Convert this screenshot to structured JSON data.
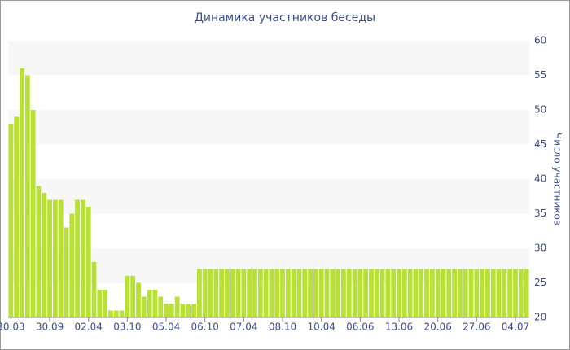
{
  "chart_data": {
    "type": "bar",
    "title": "Динамика участников беседы",
    "y_label": "Число участников",
    "categories": [
      "30.03",
      null,
      null,
      null,
      null,
      null,
      null,
      "30.09",
      null,
      null,
      null,
      null,
      null,
      null,
      "02.04",
      null,
      null,
      null,
      null,
      null,
      null,
      "03.10",
      null,
      null,
      null,
      null,
      null,
      null,
      "05.04",
      null,
      null,
      null,
      null,
      null,
      null,
      "06.10",
      null,
      null,
      null,
      null,
      null,
      null,
      "07.04",
      null,
      null,
      null,
      null,
      null,
      null,
      "08.10",
      null,
      null,
      null,
      null,
      null,
      null,
      "10.04",
      null,
      null,
      null,
      null,
      null,
      null,
      "06.06",
      null,
      null,
      null,
      null,
      null,
      null,
      "13.06",
      null,
      null,
      null,
      null,
      null,
      null,
      "20.06",
      null,
      null,
      null,
      null,
      null,
      null,
      "27.06",
      null,
      null,
      null,
      null,
      null,
      null,
      "04.07",
      null,
      null
    ],
    "values": [
      48,
      49,
      56,
      55,
      50,
      39,
      38,
      37,
      37,
      37,
      33,
      35,
      37,
      37,
      36,
      28,
      24,
      24,
      21,
      21,
      21,
      26,
      26,
      25,
      23,
      24,
      24,
      23,
      22,
      22,
      23,
      22,
      22,
      22,
      27,
      27,
      27,
      27,
      27,
      27,
      27,
      27,
      27,
      27,
      27,
      27,
      27,
      27,
      27,
      27,
      27,
      27,
      27,
      27,
      27,
      27,
      27,
      27,
      27,
      27,
      27,
      27,
      27,
      27,
      27,
      27,
      27,
      27,
      27,
      27,
      27,
      27,
      27,
      27,
      27,
      27,
      27,
      27,
      27,
      27,
      27,
      27,
      27,
      27,
      27,
      27,
      27,
      27,
      27,
      27,
      27,
      27,
      27,
      27
    ],
    "color": "#b8e036",
    "ylim": [
      20,
      60
    ],
    "yticks": [
      20,
      25,
      30,
      35,
      40,
      45,
      50,
      55,
      60
    ],
    "grid": true
  }
}
